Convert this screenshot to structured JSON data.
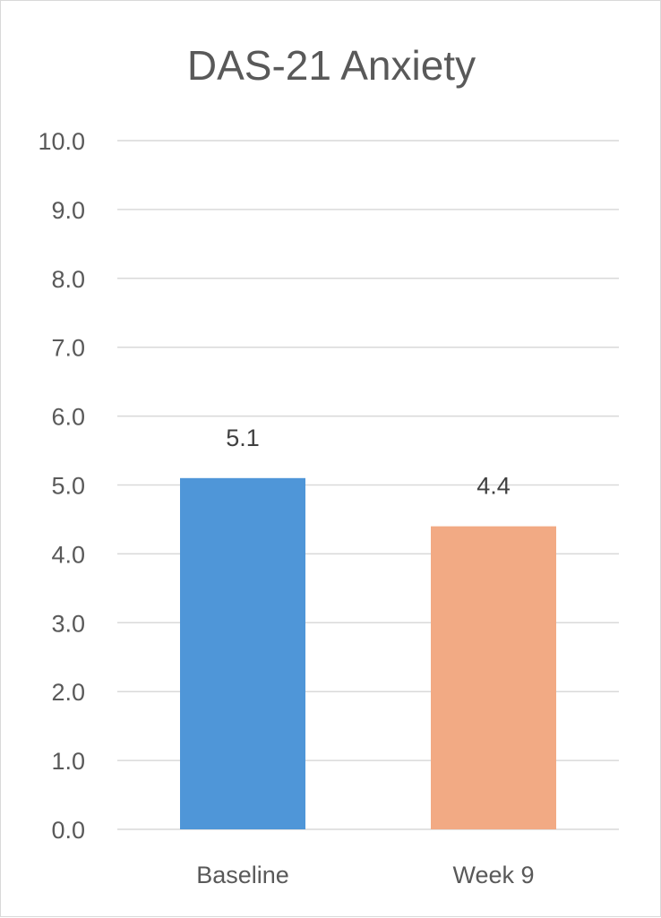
{
  "chart_data": {
    "type": "bar",
    "title": "DAS-21 Anxiety",
    "categories": [
      "Baseline",
      "Week 9"
    ],
    "values": [
      5.1,
      4.4
    ],
    "data_labels": [
      "5.1",
      "4.4"
    ],
    "colors": [
      "#4f96d8",
      "#f2aa84"
    ],
    "ylim": [
      0,
      10
    ],
    "yticks": [
      "0.0",
      "1.0",
      "2.0",
      "3.0",
      "4.0",
      "5.0",
      "6.0",
      "7.0",
      "8.0",
      "9.0",
      "10.0"
    ],
    "grid": true,
    "legend": "none"
  }
}
